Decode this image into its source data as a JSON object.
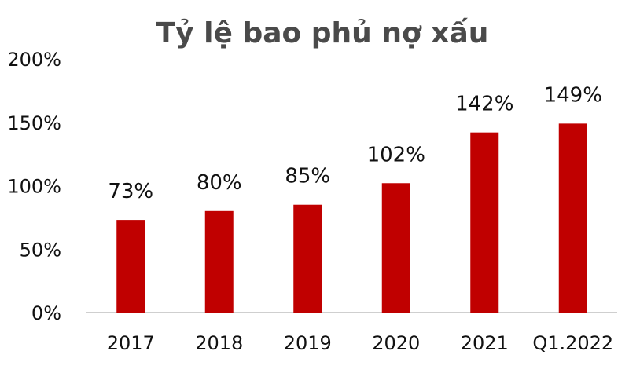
{
  "chart_data": {
    "type": "bar",
    "title": "Tỷ lệ bao phủ nợ xấu",
    "xlabel": "",
    "ylabel": "",
    "categories": [
      "2017",
      "2018",
      "2019",
      "2020",
      "2021",
      "Q1.2022"
    ],
    "values": [
      73,
      80,
      85,
      102,
      142,
      149
    ],
    "data_labels": [
      "73%",
      "80%",
      "85%",
      "102%",
      "142%",
      "149%"
    ],
    "ylim": [
      0,
      200
    ],
    "y_ticks": [
      {
        "value": 0,
        "label": "0%"
      },
      {
        "value": 50,
        "label": "50%"
      },
      {
        "value": 100,
        "label": "100%"
      },
      {
        "value": 150,
        "label": "150%"
      },
      {
        "value": 200,
        "label": "200%"
      }
    ],
    "grid": false,
    "legend": "none",
    "bar_color": "#C00000",
    "axis_color": "#BFBFBF"
  }
}
